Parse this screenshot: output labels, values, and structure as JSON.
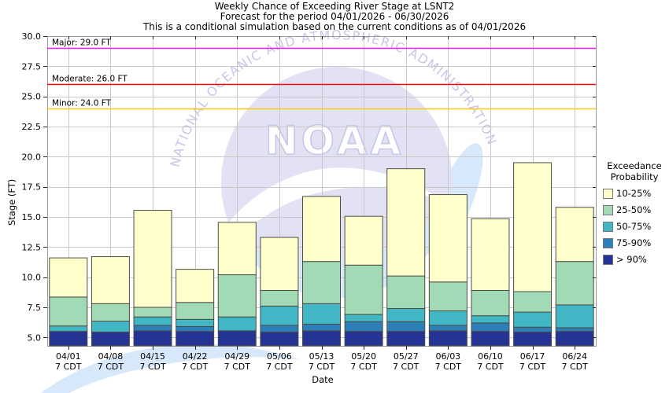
{
  "title_block": {
    "line1": "Weekly Chance of Exceeding River Stage at LSNT2",
    "line2": "Forecast for the period 04/01/2026 - 06/30/2026",
    "line3": "This is a conditional simulation based on the current conditions as of 04/01/2026"
  },
  "chart_data": {
    "type": "bar",
    "stacked": true,
    "title": "Weekly Chance of Exceeding River Stage at LSNT2",
    "xlabel": "Date",
    "ylabel": "Stage (FT)",
    "ylim": [
      4.3,
      30.0
    ],
    "ytick_labels": [
      "5.0",
      "7.5",
      "10.0",
      "12.5",
      "15.0",
      "17.5",
      "20.0",
      "22.5",
      "25.0",
      "27.5",
      "30.0"
    ],
    "grid": true,
    "categories": [
      "04/01",
      "04/08",
      "04/15",
      "04/22",
      "04/29",
      "05/06",
      "05/13",
      "05/20",
      "05/27",
      "06/03",
      "06/10",
      "06/17",
      "06/24"
    ],
    "x_sublabel": "7 CDT",
    "bar_base": 4.3,
    "series": [
      {
        "name": "> 90%",
        "color": "#253494",
        "tops": [
          5.5,
          5.45,
          5.55,
          5.5,
          5.55,
          5.45,
          5.55,
          5.5,
          5.5,
          5.55,
          5.5,
          5.45,
          5.5
        ]
      },
      {
        "name": "75-90%",
        "color": "#2c7fb8",
        "tops": [
          5.5,
          5.45,
          6.0,
          5.9,
          5.55,
          6.0,
          6.1,
          6.3,
          6.3,
          6.0,
          6.2,
          5.85,
          5.8
        ]
      },
      {
        "name": "50-75%",
        "color": "#41b6c4",
        "tops": [
          5.95,
          6.35,
          6.7,
          6.5,
          6.7,
          7.6,
          7.8,
          6.9,
          7.4,
          7.2,
          6.8,
          7.1,
          7.7
        ]
      },
      {
        "name": "25-50%",
        "color": "#a1dab4",
        "tops": [
          8.35,
          7.8,
          7.5,
          7.9,
          10.2,
          8.9,
          11.3,
          11.0,
          10.1,
          9.6,
          8.9,
          8.8,
          11.3
        ]
      },
      {
        "name": "10-25%",
        "color": "#ffffcc",
        "tops": [
          11.6,
          11.7,
          15.55,
          10.65,
          14.55,
          13.3,
          16.7,
          15.05,
          19.0,
          16.85,
          14.85,
          19.5,
          15.8
        ]
      }
    ],
    "thresholds": [
      {
        "label": "Major: 29.0 FT",
        "value": 29.0,
        "color": "#f618f6"
      },
      {
        "label": "Moderate: 26.0 FT",
        "value": 26.0,
        "color": "#fa0a0a"
      },
      {
        "label": "Minor: 24.0 FT",
        "value": 24.0,
        "color": "#ffc80a"
      }
    ],
    "legend": {
      "title": [
        "Exceedance",
        "Probability"
      ],
      "position": "right",
      "items": [
        "10-25%",
        "25-50%",
        "50-75%",
        "75-90%",
        "> 90%"
      ]
    }
  },
  "watermark": {
    "arc_text": "NATIONAL OCEANIC AND ATMOSPHERIC ADMINISTRATION",
    "logo_text": "NOAA",
    "circle_color": "#e2e2f4",
    "sea_color": "#d6e8f9",
    "arc_text_color": "#c7c7e8"
  },
  "frame": {
    "grid_color": "#c9c9c9",
    "border_color": "#9a9a9a",
    "bar_border_color": "#4d4d45",
    "tick_color": "#262626"
  }
}
